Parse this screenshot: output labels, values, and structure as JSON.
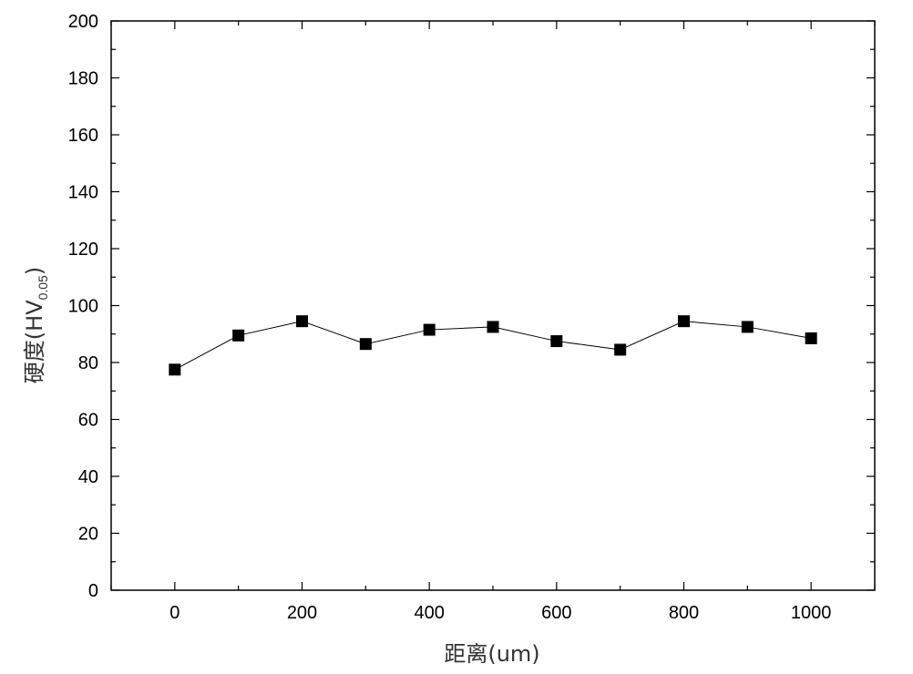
{
  "chart_data": {
    "type": "line",
    "title": "",
    "xlabel": "距离(um)",
    "ylabel": {
      "main": "硬度(HV",
      "subscript": "0.05",
      "close": ")"
    },
    "xlim": [
      -100,
      1100
    ],
    "ylim": [
      0,
      200
    ],
    "x_ticks": [
      0,
      200,
      400,
      600,
      800,
      1000
    ],
    "y_ticks": [
      0,
      20,
      40,
      60,
      80,
      100,
      120,
      140,
      160,
      180,
      200
    ],
    "grid": false,
    "legend": "none",
    "series": [
      {
        "x": [
          0,
          100,
          200,
          300,
          400,
          500,
          600,
          700,
          800,
          900,
          1000
        ],
        "values": [
          77.5,
          89.5,
          94.5,
          86.5,
          91.5,
          92.5,
          87.5,
          84.5,
          94.5,
          92.5,
          88.5
        ],
        "marker": "square",
        "color": "#000000"
      }
    ]
  }
}
